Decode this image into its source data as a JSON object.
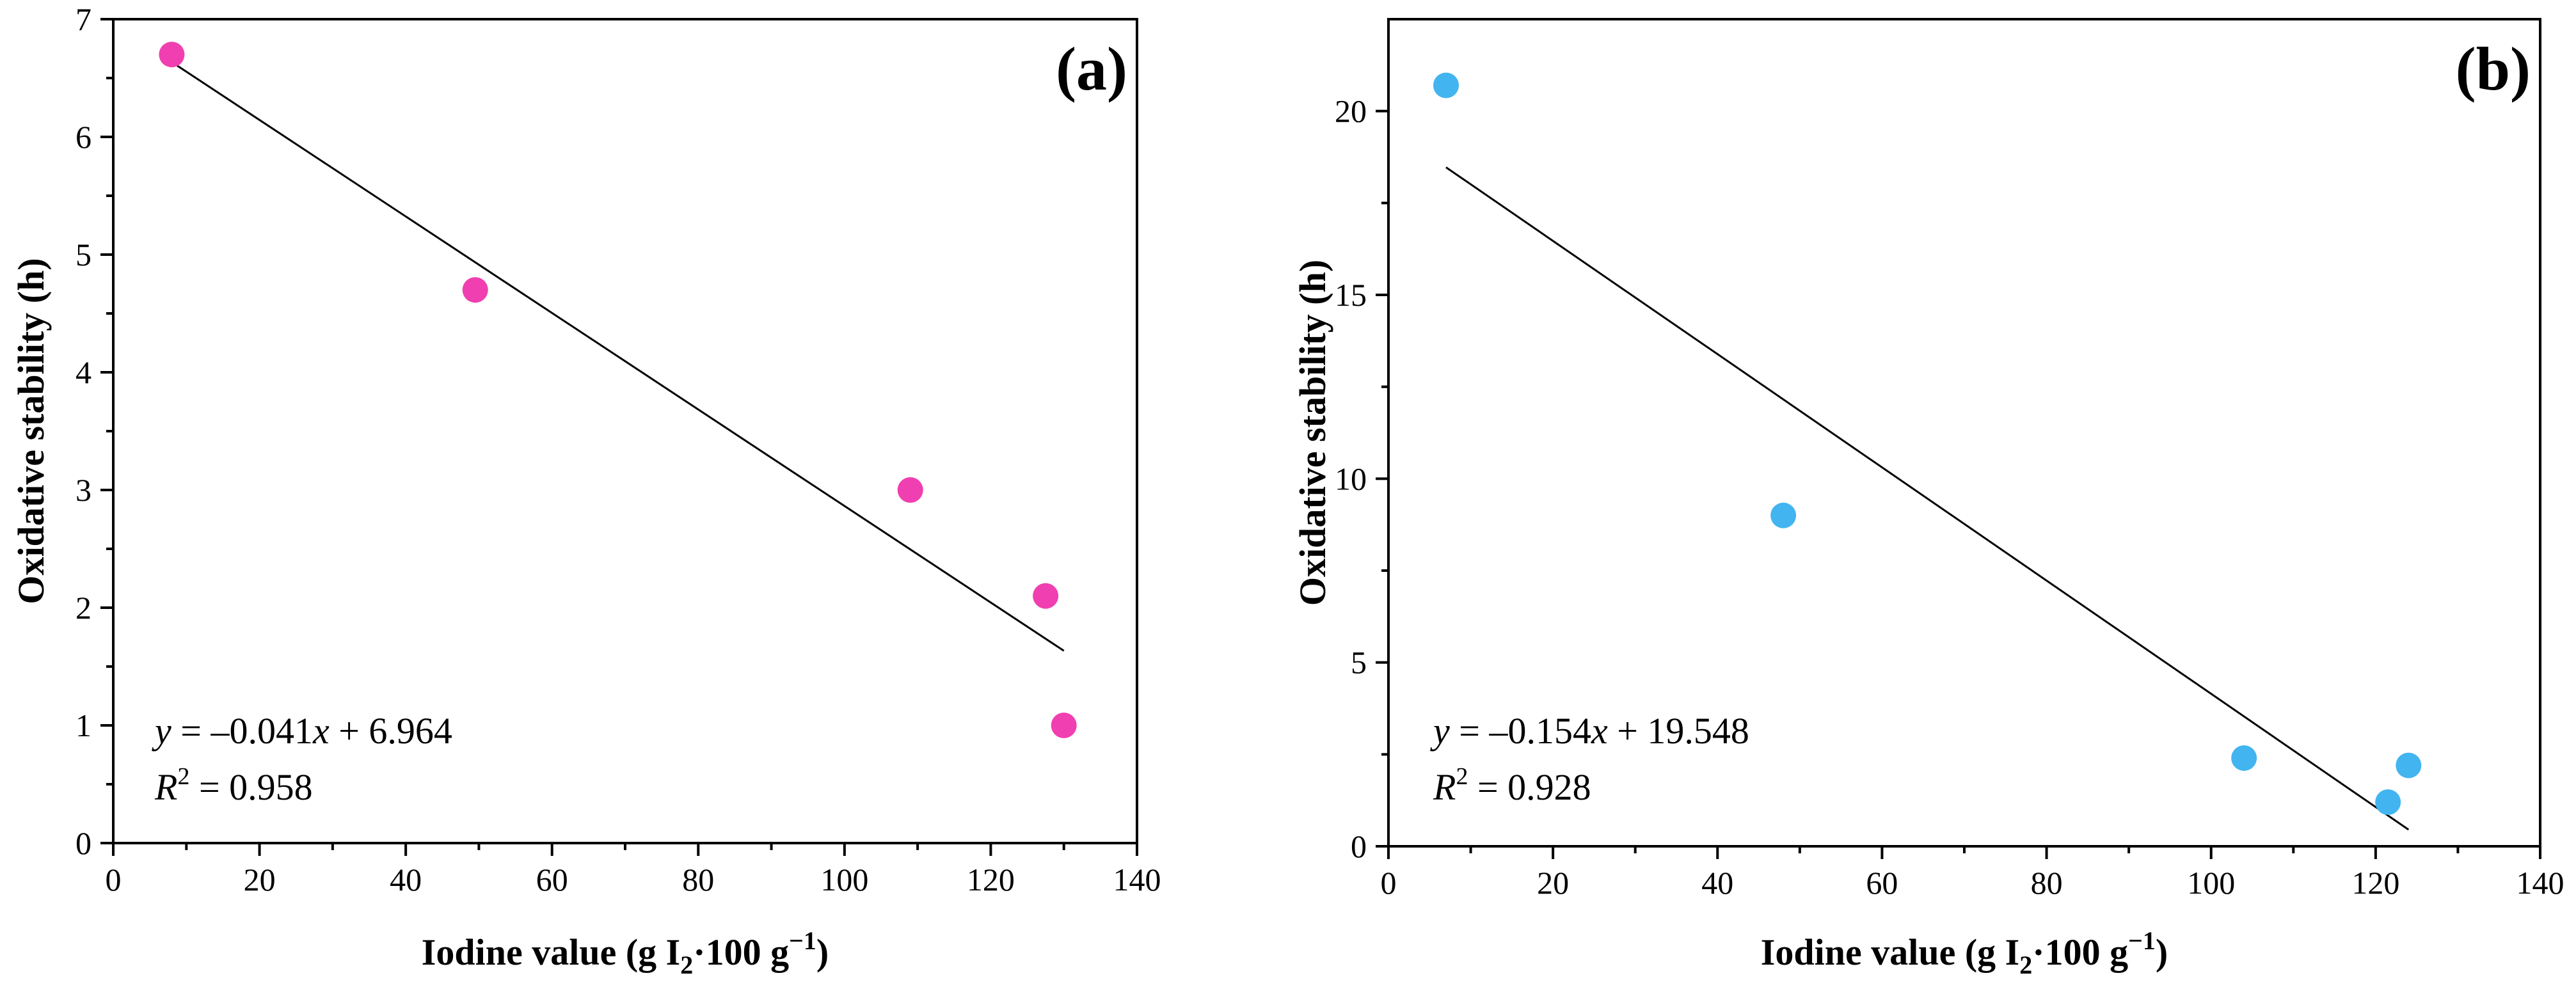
{
  "chart_data": [
    {
      "type": "scatter",
      "panel_label": "(a)",
      "xlabel": "Iodine value (g I",
      "xlabel_sub": "2",
      "xlabel_mid": "·100 g",
      "xlabel_sup": "−1",
      "xlabel_end": ")",
      "ylabel": "Oxidative stability (h)",
      "xlim": [
        0,
        140
      ],
      "ylim": [
        0,
        7
      ],
      "xticks": [
        0,
        20,
        40,
        60,
        80,
        100,
        120,
        140
      ],
      "xtick_labels": [
        "0",
        "20",
        "40",
        "60",
        "80",
        "100",
        "120",
        "140"
      ],
      "yticks": [
        0,
        1,
        2,
        3,
        4,
        5,
        6,
        7
      ],
      "ytick_labels": [
        "0",
        "1",
        "2",
        "3",
        "4",
        "5",
        "6",
        "7"
      ],
      "marker_color": "#f03fb0",
      "series": [
        {
          "name": "samples",
          "x": [
            8,
            49.5,
            109,
            127.5,
            130
          ],
          "y": [
            6.7,
            4.7,
            3.0,
            2.1,
            1.0
          ]
        }
      ],
      "fit": {
        "slope": -0.041,
        "intercept": 6.964,
        "x_range": [
          8,
          130
        ]
      },
      "equation": {
        "y_var": "y",
        "eq_mid": " = –0.041",
        "x_var": "x",
        "eq_end": " + 6.964",
        "r_var": "R",
        "r_sup": "2",
        "r_end": " = 0.958"
      }
    },
    {
      "type": "scatter",
      "panel_label": "(b)",
      "xlabel": "Iodine value (g I",
      "xlabel_sub": "2",
      "xlabel_mid": "·100 g",
      "xlabel_sup": "−1",
      "xlabel_end": ")",
      "ylabel": "Oxidative stability (h)",
      "xlim": [
        0,
        140
      ],
      "ylim": [
        0,
        22.5
      ],
      "xticks": [
        0,
        20,
        40,
        60,
        80,
        100,
        120,
        140
      ],
      "xtick_labels": [
        "0",
        "20",
        "40",
        "60",
        "80",
        "100",
        "120",
        "140"
      ],
      "yticks": [
        0,
        5,
        10,
        15,
        20
      ],
      "ytick_labels": [
        "0",
        "5",
        "10",
        "15",
        "20"
      ],
      "marker_color": "#42b4f0",
      "series": [
        {
          "name": "samples",
          "x": [
            7,
            48,
            104,
            121.5,
            124
          ],
          "y": [
            20.7,
            9.0,
            2.4,
            1.2,
            2.2
          ]
        }
      ],
      "fit": {
        "slope": -0.154,
        "intercept": 19.548,
        "x_range": [
          7,
          124
        ]
      },
      "equation": {
        "y_var": "y",
        "eq_mid": " = –0.154",
        "x_var": "x",
        "eq_end": " + 19.548",
        "r_var": "R",
        "r_sup": "2",
        "r_end": " = 0.928"
      }
    }
  ]
}
